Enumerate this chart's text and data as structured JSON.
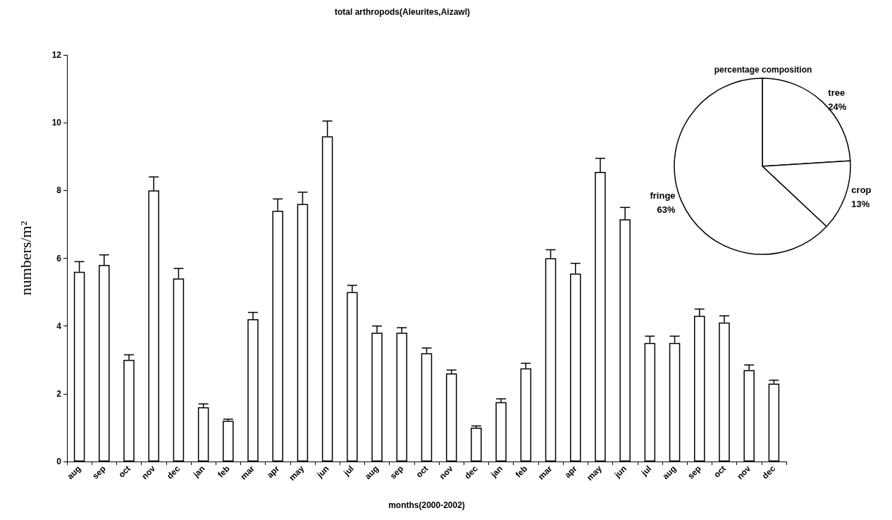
{
  "chart_data": [
    {
      "type": "bar",
      "title": "total arthropods(Aleurites,Aizawl)",
      "xlabel": "months(2000-2002)",
      "ylabel": "numbers/m²",
      "categories": [
        "aug",
        "sep",
        "oct",
        "nov",
        "dec",
        "jan",
        "feb",
        "mar",
        "apr",
        "may",
        "jun",
        "jul",
        "aug",
        "sep",
        "oct",
        "nov",
        "dec",
        "jan",
        "feb",
        "mar",
        "apr",
        "may",
        "jun",
        "jul",
        "aug",
        "sep",
        "oct",
        "nov",
        "dec"
      ],
      "values": [
        5.6,
        5.8,
        3.0,
        8.0,
        5.4,
        1.6,
        1.2,
        4.2,
        7.4,
        7.6,
        9.6,
        5.0,
        3.8,
        3.8,
        3.2,
        2.6,
        1.0,
        1.75,
        2.75,
        6.0,
        5.55,
        8.55,
        7.15,
        3.5,
        3.5,
        4.3,
        4.1,
        2.7,
        2.3
      ],
      "errors": [
        [
          5.6,
          5.9
        ],
        [
          5.8,
          6.1
        ],
        [
          3.0,
          3.15
        ],
        [
          8.0,
          8.4
        ],
        [
          5.4,
          5.7
        ],
        [
          1.6,
          1.7
        ],
        [
          1.2,
          1.25
        ],
        [
          4.2,
          4.4
        ],
        [
          7.4,
          7.75
        ],
        [
          7.6,
          7.95
        ],
        [
          9.6,
          10.05
        ],
        [
          5.0,
          5.2
        ],
        [
          3.8,
          4.0
        ],
        [
          3.8,
          3.95
        ],
        [
          3.2,
          3.35
        ],
        [
          2.6,
          2.7
        ],
        [
          1.0,
          1.05
        ],
        [
          1.75,
          1.85
        ],
        [
          2.75,
          2.9
        ],
        [
          6.0,
          6.25
        ],
        [
          5.55,
          5.85
        ],
        [
          8.55,
          8.95
        ],
        [
          7.15,
          7.5
        ],
        [
          3.5,
          3.7
        ],
        [
          3.5,
          3.7
        ],
        [
          4.3,
          4.5
        ],
        [
          4.1,
          4.3
        ],
        [
          2.7,
          2.85
        ],
        [
          2.3,
          2.4
        ]
      ],
      "color": "#ffffff",
      "ylim": [
        0,
        12
      ],
      "yticks": [
        0,
        2,
        4,
        6,
        8,
        10,
        12
      ],
      "grid": false,
      "legend": false
    },
    {
      "type": "pie",
      "title": "percentage composition",
      "categories": [
        "tree",
        "crop",
        "fringe"
      ],
      "values": [
        24,
        13,
        63
      ],
      "value_labels": [
        "24%",
        "13%",
        "63%"
      ],
      "colors": [
        "#ffffff",
        "#ffffff",
        "#ffffff"
      ],
      "legend": false
    }
  ]
}
